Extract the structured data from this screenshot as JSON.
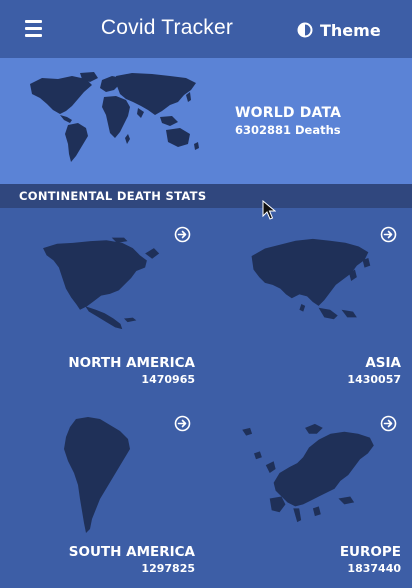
{
  "header": {
    "title": "Covid Tracker",
    "theme_label": "Theme"
  },
  "world": {
    "title": "WORLD DATA",
    "deaths": "6302881 Deaths"
  },
  "section": {
    "title": "CONTINENTAL DEATH STATS"
  },
  "continents": [
    {
      "name": "NORTH AMERICA",
      "deaths": "1470965"
    },
    {
      "name": "ASIA",
      "deaths": "1430057"
    },
    {
      "name": "SOUTH AMERICA",
      "deaths": "1297825"
    },
    {
      "name": "EUROPE",
      "deaths": "1837440"
    }
  ],
  "colors": {
    "background": "#3d5ea6",
    "banner": "#5b83d6",
    "section_bar": "#30477e",
    "map_fill": "#1f3058",
    "text": "#ffffff"
  },
  "icons": {
    "menu": "hamburger-icon",
    "theme": "half-circle-icon",
    "card_arrow": "circle-arrow-right-icon"
  }
}
